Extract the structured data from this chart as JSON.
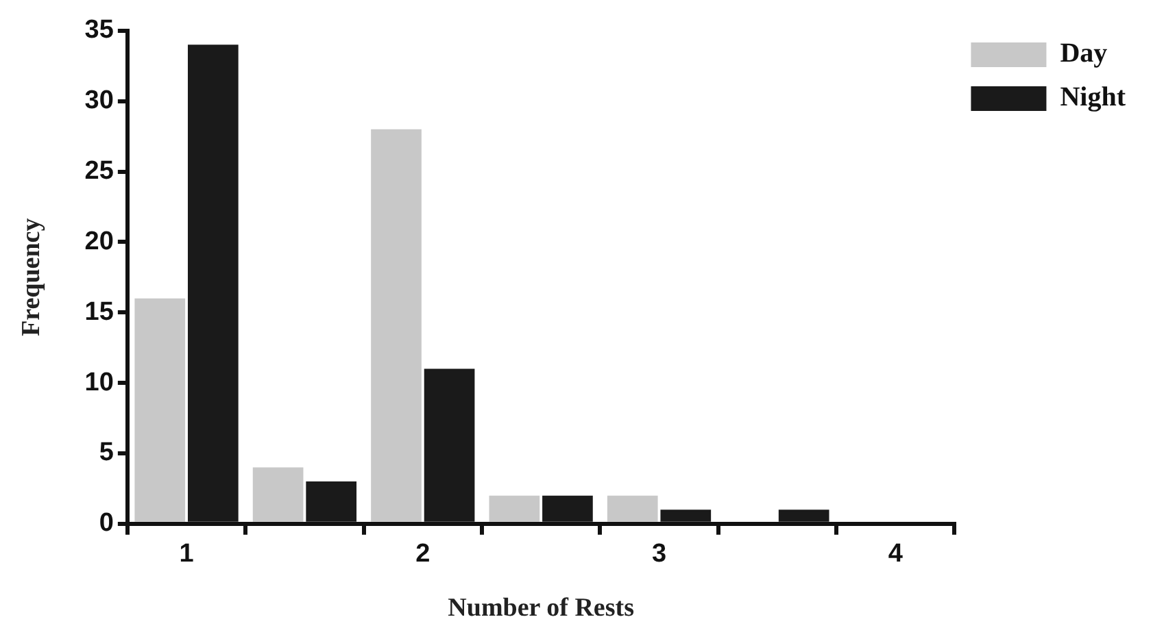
{
  "chart_data": {
    "type": "bar",
    "xlabel": "Number of Rests",
    "ylabel": "Frequency",
    "categories": [
      "1",
      null,
      "2",
      null,
      "3",
      null,
      "4"
    ],
    "series": [
      {
        "name": "Day",
        "color": "#c8c8c8",
        "values": [
          16,
          4,
          28,
          2,
          2,
          0,
          0
        ]
      },
      {
        "name": "Night",
        "color": "#1a1a1a",
        "values": [
          34,
          3,
          11,
          2,
          1,
          1,
          0
        ]
      }
    ],
    "ylim": [
      0,
      35
    ],
    "yticks": [
      0,
      5,
      10,
      15,
      20,
      25,
      30,
      35
    ],
    "grid": false,
    "legend": "top right"
  }
}
